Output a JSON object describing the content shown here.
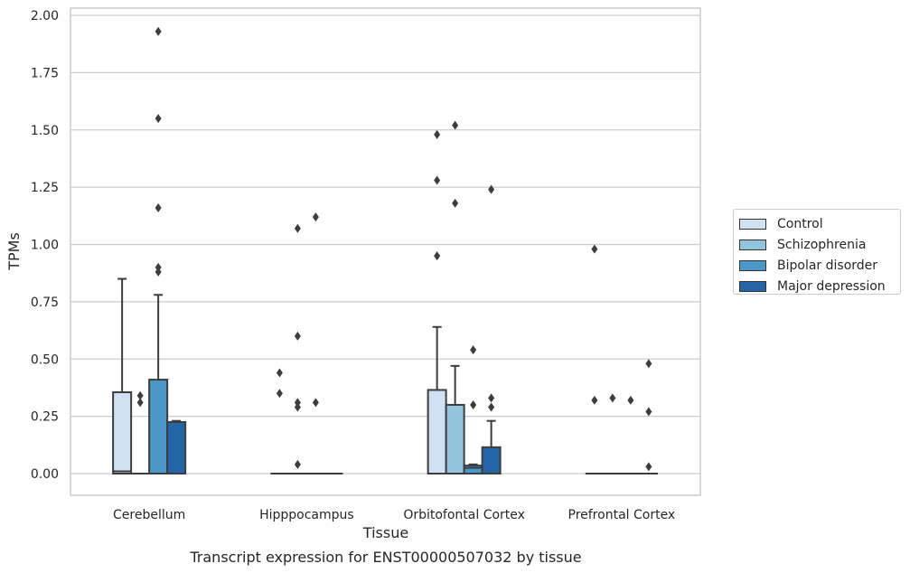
{
  "chart_data": {
    "type": "box",
    "title": "Transcript expression for ENST00000507032 by tissue",
    "xlabel": "Tissue",
    "ylabel": "TPMs",
    "ylim": [
      -0.09,
      2.03
    ],
    "yticks": [
      "0.00",
      "0.25",
      "0.50",
      "0.75",
      "1.00",
      "1.25",
      "1.50",
      "1.75",
      "2.00"
    ],
    "ytick_values": [
      0,
      0.25,
      0.5,
      0.75,
      1.0,
      1.25,
      1.5,
      1.75,
      2.0
    ],
    "categories": [
      "Cerebellum",
      "Hipppocampus",
      "Orbitofontal Cortex",
      "Prefrontal Cortex"
    ],
    "grid": "horizontal",
    "legend_placement": "right, outside",
    "series": [
      {
        "name": "Control",
        "color": "#cfe1f2",
        "boxes": [
          {
            "q1": 0.0,
            "median": 0.01,
            "q3": 0.355,
            "whislo": 0.0,
            "whishi": 0.85,
            "fliers": []
          },
          {
            "q1": 0.0,
            "median": 0.0,
            "q3": 0.0,
            "whislo": 0.0,
            "whishi": 0.0,
            "fliers": [
              0.44,
              0.35
            ]
          },
          {
            "q1": 0.0,
            "median": 0.0,
            "q3": 0.365,
            "whislo": 0.0,
            "whishi": 0.64,
            "fliers": [
              1.48,
              1.28,
              0.95
            ]
          },
          {
            "q1": 0.0,
            "median": 0.0,
            "q3": 0.0,
            "whislo": 0.0,
            "whishi": 0.0,
            "fliers": [
              0.98,
              0.32
            ]
          }
        ]
      },
      {
        "name": "Schizophrenia",
        "color": "#93c4de",
        "boxes": [
          {
            "q1": 0.0,
            "median": 0.0,
            "q3": 0.0,
            "whislo": 0.0,
            "whishi": 0.0,
            "fliers": [
              0.34,
              0.31
            ]
          },
          {
            "q1": 0.0,
            "median": 0.0,
            "q3": 0.0,
            "whislo": 0.0,
            "whishi": 0.0,
            "fliers": [
              1.07,
              0.6,
              0.31,
              0.29,
              0.04
            ]
          },
          {
            "q1": 0.0,
            "median": 0.0,
            "q3": 0.3,
            "whislo": 0.0,
            "whishi": 0.47,
            "fliers": [
              1.52,
              1.18
            ]
          },
          {
            "q1": 0.0,
            "median": 0.0,
            "q3": 0.0,
            "whislo": 0.0,
            "whishi": 0.0,
            "fliers": [
              0.33
            ]
          }
        ]
      },
      {
        "name": "Bipolar disorder",
        "color": "#4a98c9",
        "boxes": [
          {
            "q1": 0.0,
            "median": 0.0,
            "q3": 0.41,
            "whislo": 0.0,
            "whishi": 0.78,
            "fliers": [
              1.93,
              1.55,
              1.16,
              0.9,
              0.88
            ]
          },
          {
            "q1": 0.0,
            "median": 0.0,
            "q3": 0.0,
            "whislo": 0.0,
            "whishi": 0.0,
            "fliers": [
              1.12,
              0.31
            ]
          },
          {
            "q1": 0.0,
            "median": 0.025,
            "q3": 0.035,
            "whislo": 0.0,
            "whishi": 0.04,
            "fliers": [
              0.54,
              0.3
            ]
          },
          {
            "q1": 0.0,
            "median": 0.0,
            "q3": 0.0,
            "whislo": 0.0,
            "whishi": 0.0,
            "fliers": [
              0.32
            ]
          }
        ]
      },
      {
        "name": "Major depression",
        "color": "#2465a8",
        "boxes": [
          {
            "q1": 0.0,
            "median": 0.0,
            "q3": 0.225,
            "whislo": 0.0,
            "whishi": 0.23,
            "fliers": []
          },
          {
            "q1": 0.0,
            "median": 0.0,
            "q3": 0.0,
            "whislo": 0.0,
            "whishi": 0.0,
            "fliers": []
          },
          {
            "q1": 0.0,
            "median": 0.0,
            "q3": 0.115,
            "whislo": 0.0,
            "whishi": 0.23,
            "fliers": [
              1.24,
              0.33,
              0.29
            ]
          },
          {
            "q1": 0.0,
            "median": 0.0,
            "q3": 0.0,
            "whislo": 0.0,
            "whishi": 0.0,
            "fliers": [
              0.48,
              0.27,
              0.03
            ]
          }
        ]
      }
    ]
  }
}
